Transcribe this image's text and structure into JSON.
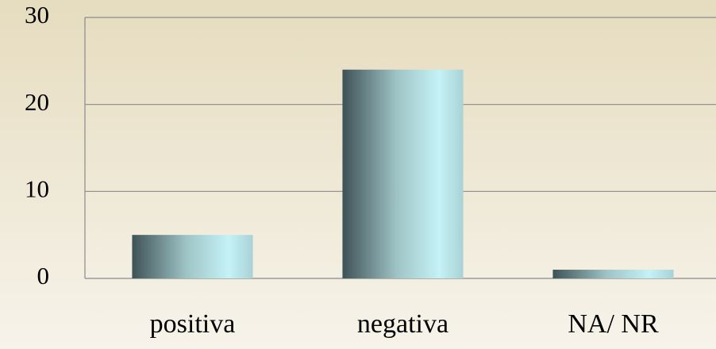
{
  "chart_data": {
    "type": "bar",
    "categories": [
      "positiva",
      "negativa",
      "NA/ NR"
    ],
    "values": [
      5,
      24,
      1
    ],
    "color": "#c4f2f6",
    "ylim": [
      0,
      30
    ],
    "yticks": [
      0,
      10,
      20,
      30
    ],
    "grid": true
  }
}
